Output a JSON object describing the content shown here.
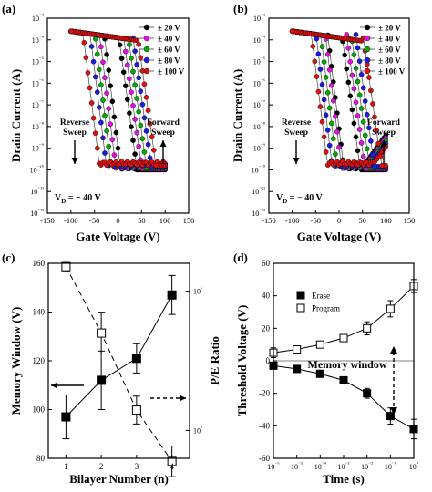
{
  "chart_data": [
    {
      "panel_label": "(a)",
      "type": "line",
      "xlabel": "Gate Voltage (V)",
      "ylabel": "Drain Current (A)",
      "xlim": [
        -150,
        150
      ],
      "ylim_log10": [
        -12,
        -3
      ],
      "x_ticks": [
        "-150",
        "-100",
        "-50",
        "0",
        "50",
        "100",
        "150"
      ],
      "y_ticks": [
        "10⁻¹²",
        "10⁻¹¹",
        "10⁻¹⁰",
        "10⁻⁹",
        "10⁻⁸",
        "10⁻⁷",
        "10⁻⁶",
        "10⁻⁵",
        "10⁻⁴",
        "10⁻³"
      ],
      "annotations": [
        "Reverse",
        "Sweep",
        "Forward",
        "Sweep",
        "V",
        "D",
        " = − 40 V"
      ],
      "series": [
        {
          "name": "± 20 V",
          "color": "#000000",
          "vth_reverse": 0,
          "vth_forward": 20
        },
        {
          "name": "± 40 V",
          "color": "#e010e0",
          "vth_reverse": -10,
          "vth_forward": 30
        },
        {
          "name": "± 60 V",
          "color": "#00aa00",
          "vth_reverse": -20,
          "vth_forward": 40
        },
        {
          "name": "± 80 V",
          "color": "#1a1ae6",
          "vth_reverse": -30,
          "vth_forward": 50
        },
        {
          "name": "± 100 V",
          "color": "#e01010",
          "vth_reverse": -45,
          "vth_forward": 60
        }
      ]
    },
    {
      "panel_label": "(b)",
      "type": "line",
      "xlabel": "Gate Voltage (V)",
      "ylabel": "Drain Current (A)",
      "xlim": [
        -150,
        150
      ],
      "ylim_log10": [
        -12,
        -3
      ],
      "x_ticks": [
        "-150",
        "-100",
        "-50",
        "0",
        "50",
        "100",
        "150"
      ],
      "y_ticks": [
        "10⁻¹²",
        "10⁻¹¹",
        "10⁻¹⁰",
        "10⁻⁹",
        "10⁻⁸",
        "10⁻⁷",
        "10⁻⁶",
        "10⁻⁵",
        "10⁻⁴",
        "10⁻³"
      ],
      "annotations": [
        "Reverse",
        "Sweep",
        "Forward",
        "Sweep",
        "V",
        "D",
        " = − 40 V"
      ],
      "series": [
        {
          "name": "± 20 V",
          "color": "#000000",
          "vth_reverse": 5,
          "vth_forward": 25
        },
        {
          "name": "± 40 V",
          "color": "#e010e0",
          "vth_reverse": 0,
          "vth_forward": 35
        },
        {
          "name": "± 60 V",
          "color": "#00aa00",
          "vth_reverse": -10,
          "vth_forward": 45
        },
        {
          "name": "± 80 V",
          "color": "#1a1ae6",
          "vth_reverse": -20,
          "vth_forward": 55
        },
        {
          "name": "± 100 V",
          "color": "#e01010",
          "vth_reverse": -30,
          "vth_forward": 70
        }
      ]
    },
    {
      "panel_label": "(c)",
      "type": "line",
      "xlabel": "Bilayer Number (n)",
      "ylabel": "Memory Window (V)",
      "y2label": "P/E Ratio",
      "categories": [
        "1",
        "2",
        "3",
        "4"
      ],
      "x_ticks": [
        "1",
        "2",
        "3",
        "4"
      ],
      "xlim": [
        0.5,
        4.5
      ],
      "ylim": [
        80,
        160
      ],
      "y_ticks": [
        "80",
        "100",
        "120",
        "140",
        "160"
      ],
      "y2lim_log10": [
        4.8,
        6.2
      ],
      "y2_ticks": [
        "10⁵",
        "10⁶"
      ],
      "series": [
        {
          "axis": "left",
          "marker": "filled-square",
          "line": "solid",
          "values": [
            97,
            112,
            121,
            147
          ],
          "err": [
            9,
            12,
            6,
            8
          ]
        },
        {
          "axis": "right",
          "marker": "open-square",
          "line": "dashed",
          "values": [
            1500000,
            500000,
            140000,
            60000
          ],
          "err_log10": [
            0.03,
            0.15,
            0.1,
            0.11
          ]
        }
      ]
    },
    {
      "panel_label": "(d)",
      "type": "line",
      "xlabel": "Time (s)",
      "ylabel": "Threshold Voltage (V)",
      "x_log10": true,
      "xlim_log10": [
        -6,
        0
      ],
      "x_ticks": [
        "10⁻⁶",
        "10⁻⁵",
        "10⁻⁴",
        "10⁻³",
        "10⁻²",
        "10⁻¹",
        "10⁰"
      ],
      "ylim": [
        -60,
        60
      ],
      "y_ticks": [
        "-60",
        "-40",
        "-20",
        "0",
        "20",
        "40",
        "60"
      ],
      "annotations": [
        "Memory window"
      ],
      "series": [
        {
          "name": "Erase",
          "marker": "filled-square",
          "x_log10": [
            -6,
            -5,
            -4,
            -3,
            -2,
            -1,
            0
          ],
          "values": [
            -3,
            -5,
            -8,
            -12,
            -20,
            -34,
            -42
          ],
          "err": [
            2,
            2,
            2,
            2,
            3,
            5,
            6
          ]
        },
        {
          "name": "Program",
          "marker": "open-square",
          "x_log10": [
            -6,
            -5,
            -4,
            -3,
            -2,
            -1,
            0
          ],
          "values": [
            5,
            7,
            10,
            14,
            20,
            32,
            46
          ],
          "err": [
            3,
            2,
            2,
            2,
            4,
            5,
            4
          ]
        }
      ]
    }
  ]
}
